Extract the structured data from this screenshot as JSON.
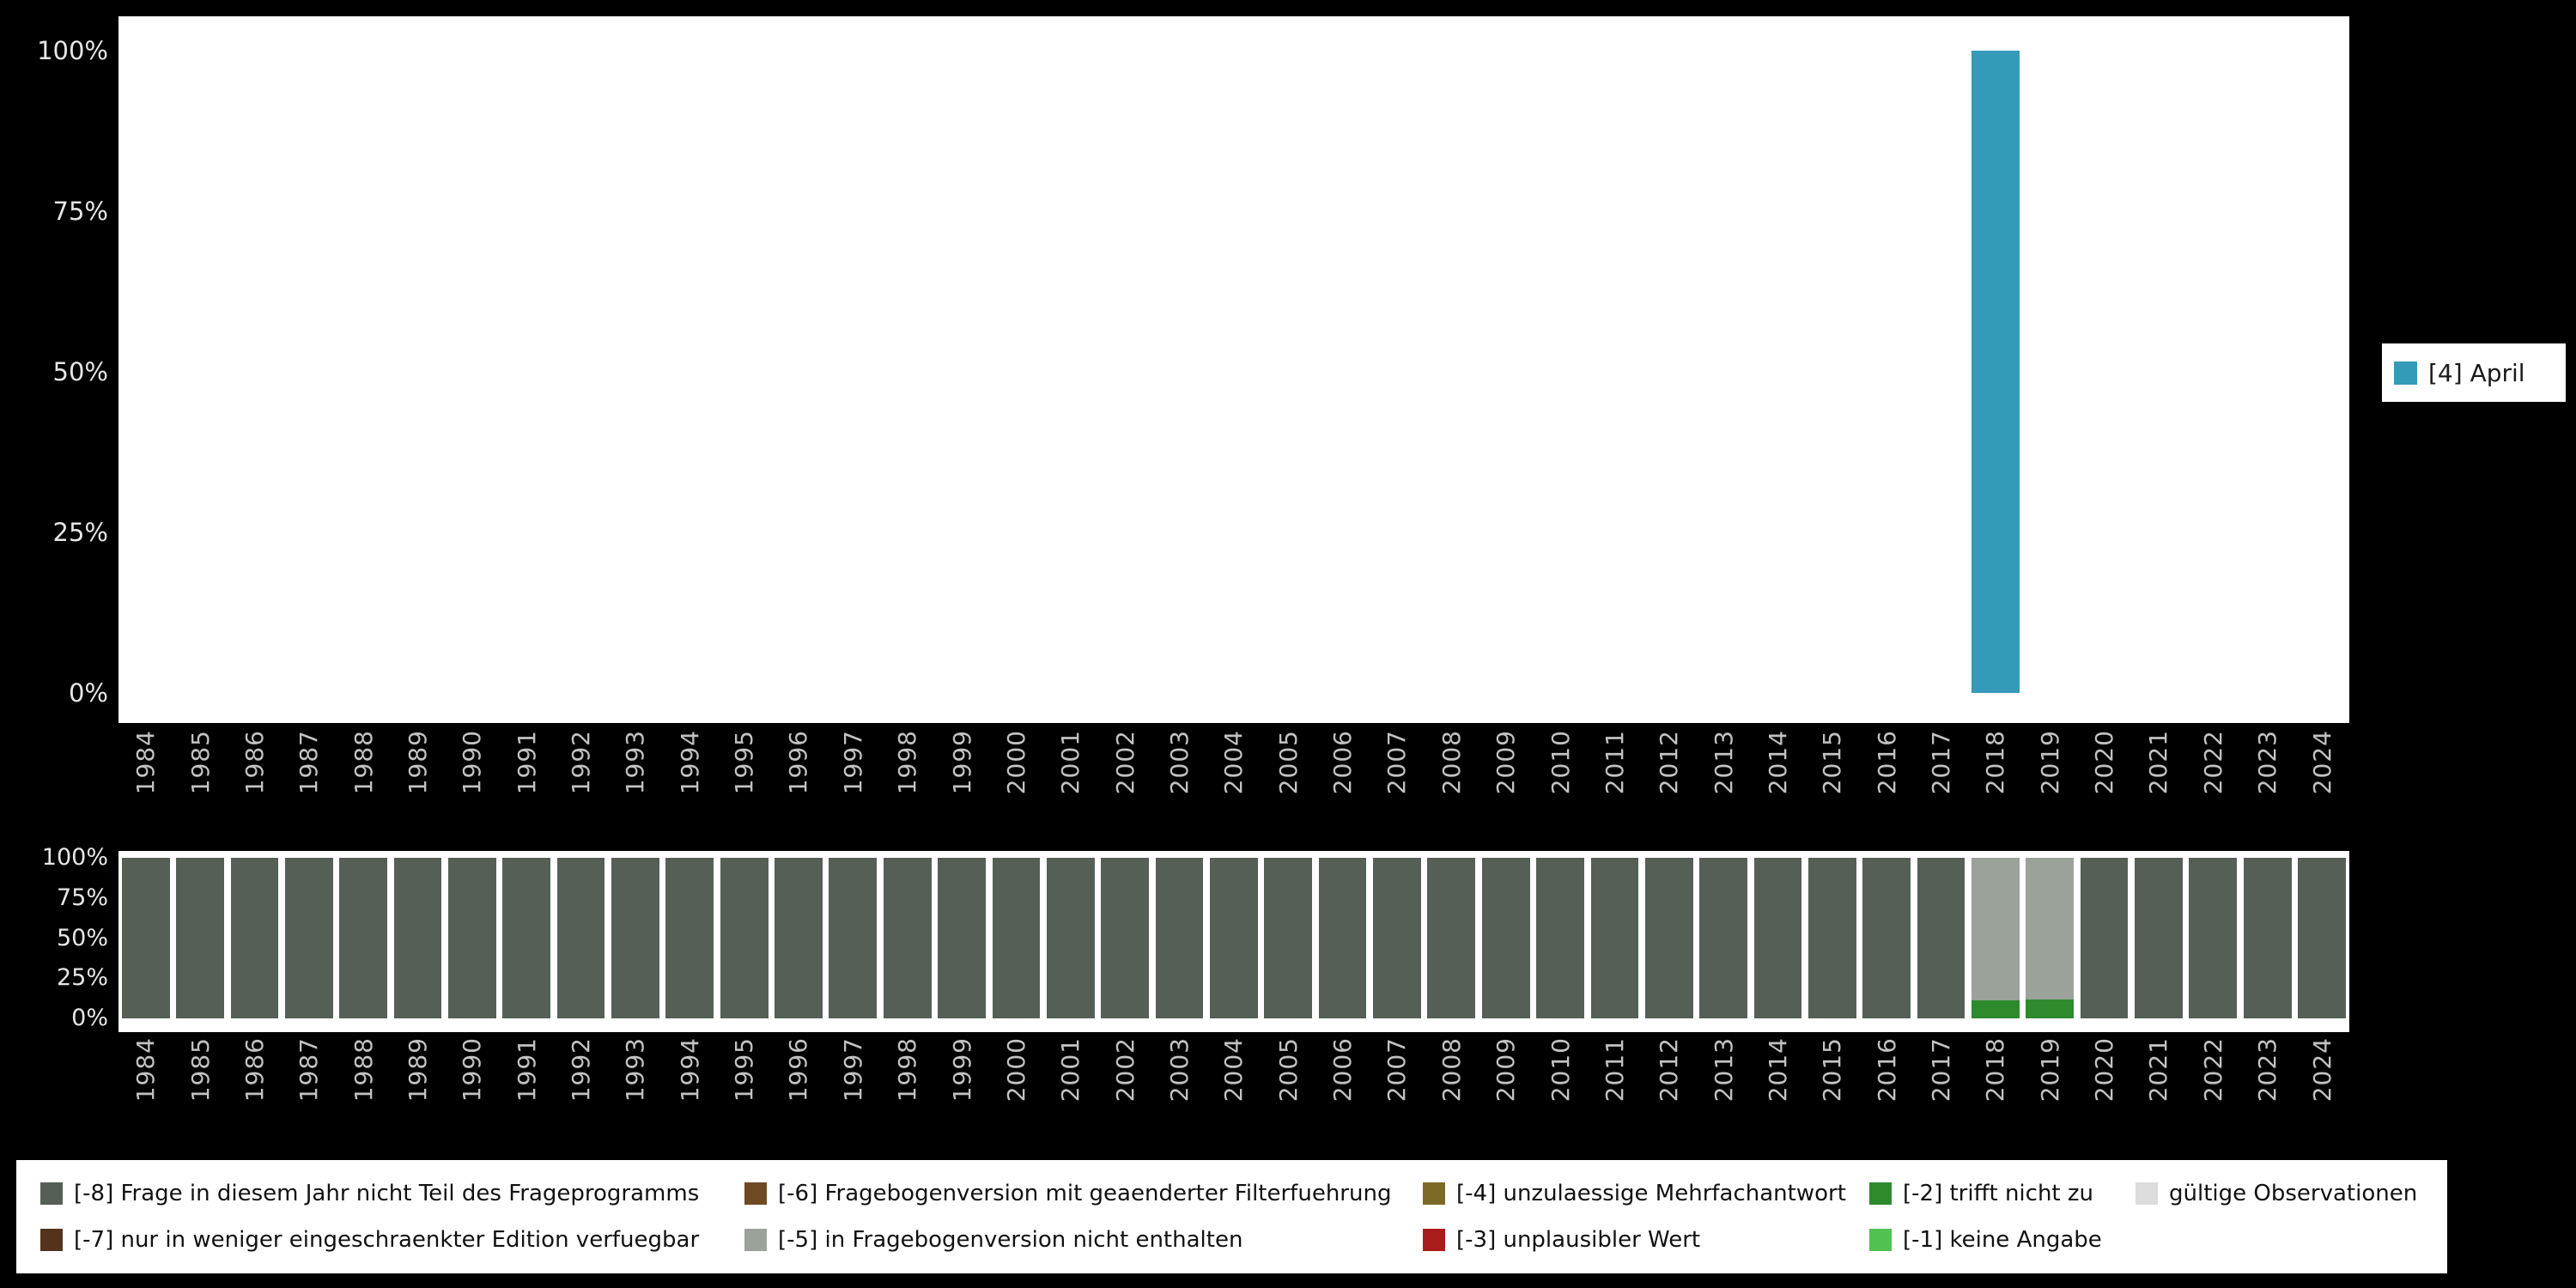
{
  "colors": {
    "background": "#000000",
    "plot_background": "#ffffff",
    "y_axis_text": "#e6e6e6",
    "x_axis_text": "#c2c2c2",
    "april": "#3599b8",
    "codes": {
      "[-8]": "#555f56",
      "[-7]": "#53331b",
      "[-6]": "#6e4a22",
      "[-5]": "#9aa29a",
      "[-4]": "#7d6a26",
      "[-3]": "#aa1c1c",
      "[-2]": "#2d8a2d",
      "[-1]": "#52c152",
      "valid": "#dcdcdc"
    }
  },
  "years": [
    1984,
    1985,
    1986,
    1987,
    1988,
    1989,
    1990,
    1991,
    1992,
    1993,
    1994,
    1995,
    1996,
    1997,
    1998,
    1999,
    2000,
    2001,
    2002,
    2003,
    2004,
    2005,
    2006,
    2007,
    2008,
    2009,
    2010,
    2011,
    2012,
    2013,
    2014,
    2015,
    2016,
    2017,
    2018,
    2019,
    2020,
    2021,
    2022,
    2023,
    2024
  ],
  "y_ticks": [
    "100%",
    "75%",
    "50%",
    "25%",
    "0%"
  ],
  "top_legend": {
    "label": "[4] April"
  },
  "bottom_legend": {
    "items": [
      {
        "label": "[-8] Frage in diesem Jahr nicht Teil des Frageprogramms",
        "code": "[-8]"
      },
      {
        "label": "[-7] nur in weniger eingeschraenkter Edition verfuegbar",
        "code": "[-7]"
      },
      {
        "label": "[-6] Fragebogenversion mit geaenderter Filterfuehrung",
        "code": "[-6]"
      },
      {
        "label": "[-5] in Fragebogenversion nicht enthalten",
        "code": "[-5]"
      },
      {
        "label": "[-4] unzulaessige Mehrfachantwort",
        "code": "[-4]"
      },
      {
        "label": "[-3] unplausibler Wert",
        "code": "[-3]"
      },
      {
        "label": "[-2] trifft nicht zu",
        "code": "[-2]"
      },
      {
        "label": "[-1] keine Angabe",
        "code": "[-1]"
      },
      {
        "label": "gültige Observationen",
        "code": "valid"
      }
    ]
  },
  "chart_data": [
    {
      "type": "bar",
      "title": "",
      "xlabel": "",
      "ylabel": "",
      "ylim": [
        0,
        100
      ],
      "yticks": [
        "0%",
        "25%",
        "50%",
        "75%",
        "100%"
      ],
      "grid": false,
      "legend_position": "right",
      "categories": [
        1984,
        1985,
        1986,
        1987,
        1988,
        1989,
        1990,
        1991,
        1992,
        1993,
        1994,
        1995,
        1996,
        1997,
        1998,
        1999,
        2000,
        2001,
        2002,
        2003,
        2004,
        2005,
        2006,
        2007,
        2008,
        2009,
        2010,
        2011,
        2012,
        2013,
        2014,
        2015,
        2016,
        2017,
        2018,
        2019,
        2020,
        2021,
        2022,
        2023,
        2024
      ],
      "series": [
        {
          "name": "[4] April",
          "values": [
            0,
            0,
            0,
            0,
            0,
            0,
            0,
            0,
            0,
            0,
            0,
            0,
            0,
            0,
            0,
            0,
            0,
            0,
            0,
            0,
            0,
            0,
            0,
            0,
            0,
            0,
            0,
            0,
            0,
            0,
            0,
            0,
            0,
            0,
            100,
            0,
            0,
            0,
            0,
            0,
            0
          ]
        }
      ]
    },
    {
      "type": "bar",
      "stacked": true,
      "title": "",
      "xlabel": "",
      "ylabel": "",
      "ylim": [
        0,
        100
      ],
      "yticks": [
        "0%",
        "25%",
        "50%",
        "75%",
        "100%"
      ],
      "grid": false,
      "legend_position": "bottom",
      "categories": [
        1984,
        1985,
        1986,
        1987,
        1988,
        1989,
        1990,
        1991,
        1992,
        1993,
        1994,
        1995,
        1996,
        1997,
        1998,
        1999,
        2000,
        2001,
        2002,
        2003,
        2004,
        2005,
        2006,
        2007,
        2008,
        2009,
        2010,
        2011,
        2012,
        2013,
        2014,
        2015,
        2016,
        2017,
        2018,
        2019,
        2020,
        2021,
        2022,
        2023,
        2024
      ],
      "series": [
        {
          "name": "[-2] trifft nicht zu",
          "code": "[-2]",
          "values": [
            0,
            0,
            0,
            0,
            0,
            0,
            0,
            0,
            0,
            0,
            0,
            0,
            0,
            0,
            0,
            0,
            0,
            0,
            0,
            0,
            0,
            0,
            0,
            0,
            0,
            0,
            0,
            0,
            0,
            0,
            0,
            0,
            0,
            0,
            11,
            12,
            0,
            0,
            0,
            0,
            0
          ]
        },
        {
          "name": "[-5] in Fragebogenversion nicht enthalten",
          "code": "[-5]",
          "values": [
            0,
            0,
            0,
            0,
            0,
            0,
            0,
            0,
            0,
            0,
            0,
            0,
            0,
            0,
            0,
            0,
            0,
            0,
            0,
            0,
            0,
            0,
            0,
            0,
            0,
            0,
            0,
            0,
            0,
            0,
            0,
            0,
            0,
            0,
            89,
            88,
            0,
            0,
            0,
            0,
            0
          ]
        },
        {
          "name": "[-8] Frage in diesem Jahr nicht Teil des Frageprogramms",
          "code": "[-8]",
          "values": [
            100,
            100,
            100,
            100,
            100,
            100,
            100,
            100,
            100,
            100,
            100,
            100,
            100,
            100,
            100,
            100,
            100,
            100,
            100,
            100,
            100,
            100,
            100,
            100,
            100,
            100,
            100,
            100,
            100,
            100,
            100,
            100,
            100,
            100,
            0,
            0,
            100,
            100,
            100,
            100,
            100
          ]
        }
      ]
    }
  ]
}
